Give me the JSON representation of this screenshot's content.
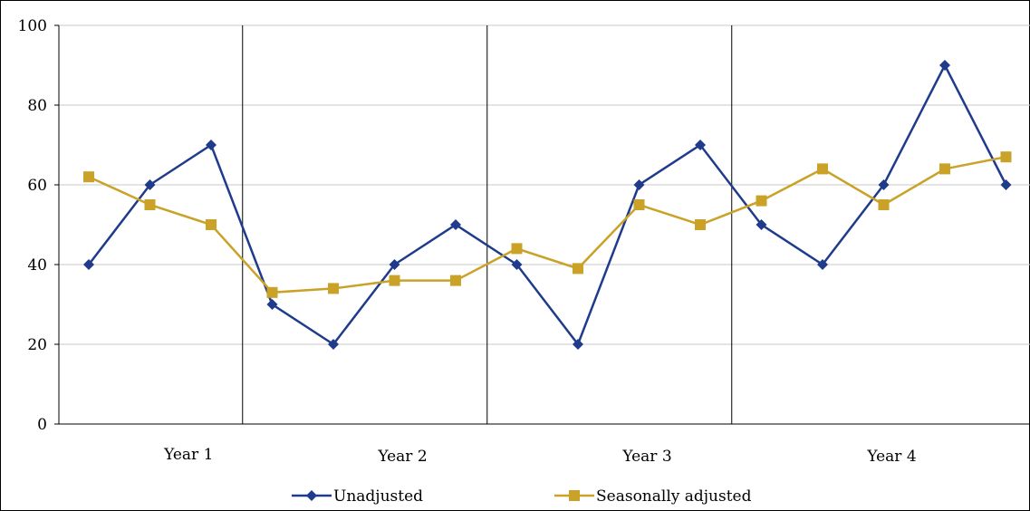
{
  "chart_data": {
    "type": "line",
    "title": "",
    "xlabel": "",
    "ylabel": "",
    "ylim": [
      0,
      100
    ],
    "yticks": [
      0,
      20,
      40,
      60,
      80,
      100
    ],
    "grid": true,
    "legend": "bottom",
    "groups": [
      {
        "label": "Year 1",
        "span": [
          0,
          3
        ]
      },
      {
        "label": "Year 2",
        "span": [
          3,
          7
        ]
      },
      {
        "label": "Year 3",
        "span": [
          7,
          11
        ]
      },
      {
        "label": "Year 4",
        "span": [
          11,
          15
        ]
      }
    ],
    "num_points": 16,
    "series": [
      {
        "name": "Unadjusted",
        "color": "#1f3b8c",
        "marker": "diamond",
        "values": [
          40,
          60,
          70,
          30,
          20,
          40,
          50,
          40,
          20,
          60,
          70,
          50,
          40,
          60,
          90,
          60
        ]
      },
      {
        "name": "Seasonally adjusted",
        "color": "#c9a227",
        "marker": "square",
        "values": [
          62,
          55,
          50,
          33,
          34,
          36,
          36,
          44,
          39,
          55,
          50,
          56,
          64,
          55,
          64,
          67
        ]
      }
    ]
  }
}
